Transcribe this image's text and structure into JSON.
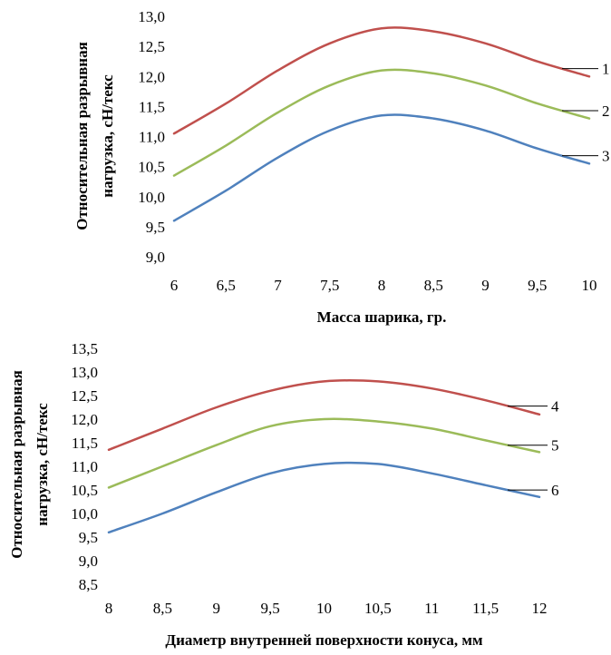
{
  "chart_data": [
    {
      "type": "line",
      "xlabel": "Масса шарика, гр.",
      "ylabel_lines": [
        "Относительная разрывная",
        "нагрузка, сН/текс"
      ],
      "xlim": [
        6,
        10
      ],
      "ylim": [
        9.0,
        13.0
      ],
      "x_ticks": [
        "6",
        "6,5",
        "7",
        "7,5",
        "8",
        "8,5",
        "9",
        "9,5",
        "10"
      ],
      "y_ticks": [
        "9,0",
        "9,5",
        "10,0",
        "10,5",
        "11,0",
        "11,5",
        "12,0",
        "12,5",
        "13,0"
      ],
      "grid": false,
      "legend": "curve labels on the right",
      "series": [
        {
          "name": "1",
          "color": "#c0504d",
          "x": [
            6,
            6.5,
            7,
            7.5,
            8,
            8.5,
            9,
            9.5,
            10
          ],
          "values": [
            11.05,
            11.55,
            12.1,
            12.55,
            12.8,
            12.75,
            12.55,
            12.25,
            12.0
          ]
        },
        {
          "name": "2",
          "color": "#9bbb59",
          "x": [
            6,
            6.5,
            7,
            7.5,
            8,
            8.5,
            9,
            9.5,
            10
          ],
          "values": [
            10.35,
            10.85,
            11.4,
            11.85,
            12.1,
            12.05,
            11.85,
            11.55,
            11.3
          ]
        },
        {
          "name": "3",
          "color": "#4f81bd",
          "x": [
            6,
            6.5,
            7,
            7.5,
            8,
            8.5,
            9,
            9.5,
            10
          ],
          "values": [
            9.6,
            10.1,
            10.65,
            11.1,
            11.35,
            11.3,
            11.1,
            10.8,
            10.55
          ]
        }
      ]
    },
    {
      "type": "line",
      "xlabel": "Диаметр внутренней  поверхности конуса, мм",
      "ylabel_lines": [
        "Относительная разрывная",
        "нагрузка, сН/текс"
      ],
      "xlim": [
        8,
        12
      ],
      "ylim": [
        8.5,
        13.5
      ],
      "x_ticks": [
        "8",
        "8,5",
        "9",
        "9,5",
        "10",
        "10,5",
        "11",
        "11,5",
        "12"
      ],
      "y_ticks": [
        "8,5",
        "9,0",
        "9,5",
        "10,0",
        "10,5",
        "11,0",
        "11,5",
        "12,0",
        "12,5",
        "13,0",
        "13,5"
      ],
      "grid": false,
      "legend": "curve labels on the right",
      "series": [
        {
          "name": "4",
          "color": "#c0504d",
          "x": [
            8,
            8.5,
            9,
            9.5,
            10,
            10.5,
            11,
            11.5,
            12
          ],
          "values": [
            11.35,
            11.8,
            12.25,
            12.6,
            12.8,
            12.8,
            12.65,
            12.4,
            12.1
          ]
        },
        {
          "name": "5",
          "color": "#9bbb59",
          "x": [
            8,
            8.5,
            9,
            9.5,
            10,
            10.5,
            11,
            11.5,
            12
          ],
          "values": [
            10.55,
            11.0,
            11.45,
            11.85,
            12.0,
            11.95,
            11.8,
            11.55,
            11.3
          ]
        },
        {
          "name": "6",
          "color": "#4f81bd",
          "x": [
            8,
            8.5,
            9,
            9.5,
            10,
            10.5,
            11,
            11.5,
            12
          ],
          "values": [
            9.6,
            10.0,
            10.45,
            10.85,
            11.05,
            11.05,
            10.85,
            10.6,
            10.35
          ]
        }
      ]
    }
  ]
}
